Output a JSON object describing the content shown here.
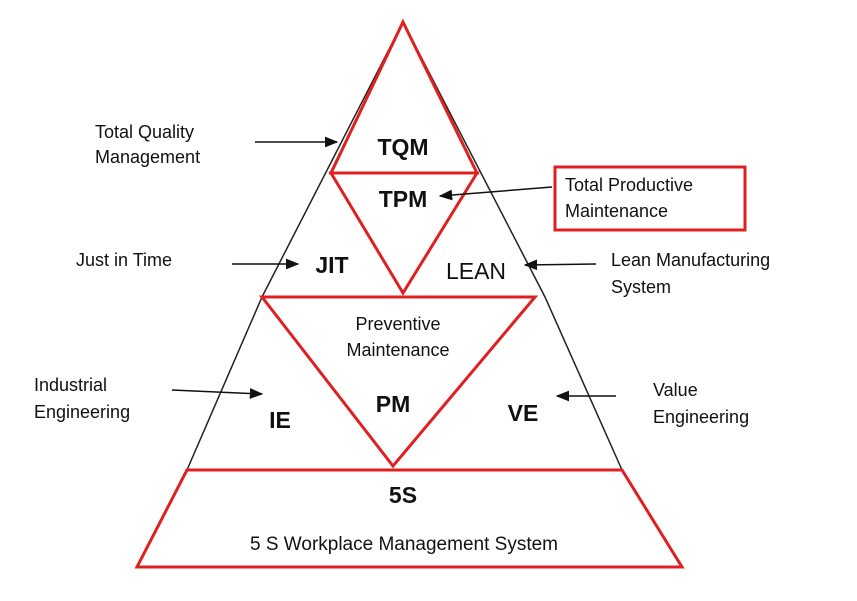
{
  "apex": {
    "acronym": "TQM",
    "name_line1": "Total Quality",
    "name_line2": "Management"
  },
  "tpm": {
    "acronym": "TPM",
    "name_line1": "Total Productive",
    "name_line2": "Maintenance"
  },
  "jit": {
    "acronym": "JIT",
    "name": "Just in Time"
  },
  "lean": {
    "acronym": "LEAN",
    "name_line1": "Lean Manufacturing",
    "name_line2": "System"
  },
  "pm": {
    "acronym": "PM",
    "name_line1": "Preventive",
    "name_line2": "Maintenance"
  },
  "ie": {
    "acronym": "IE",
    "name_line1": "Industrial",
    "name_line2": "Engineering"
  },
  "ve": {
    "acronym": "VE",
    "name_line1": "Value",
    "name_line2": "Engineering"
  },
  "base": {
    "acronym": "5S",
    "name": "5 S Workplace Management System"
  },
  "colors": {
    "highlight": "#e02020",
    "outline": "#222222",
    "arrow": "#111111",
    "text": "#111111"
  }
}
